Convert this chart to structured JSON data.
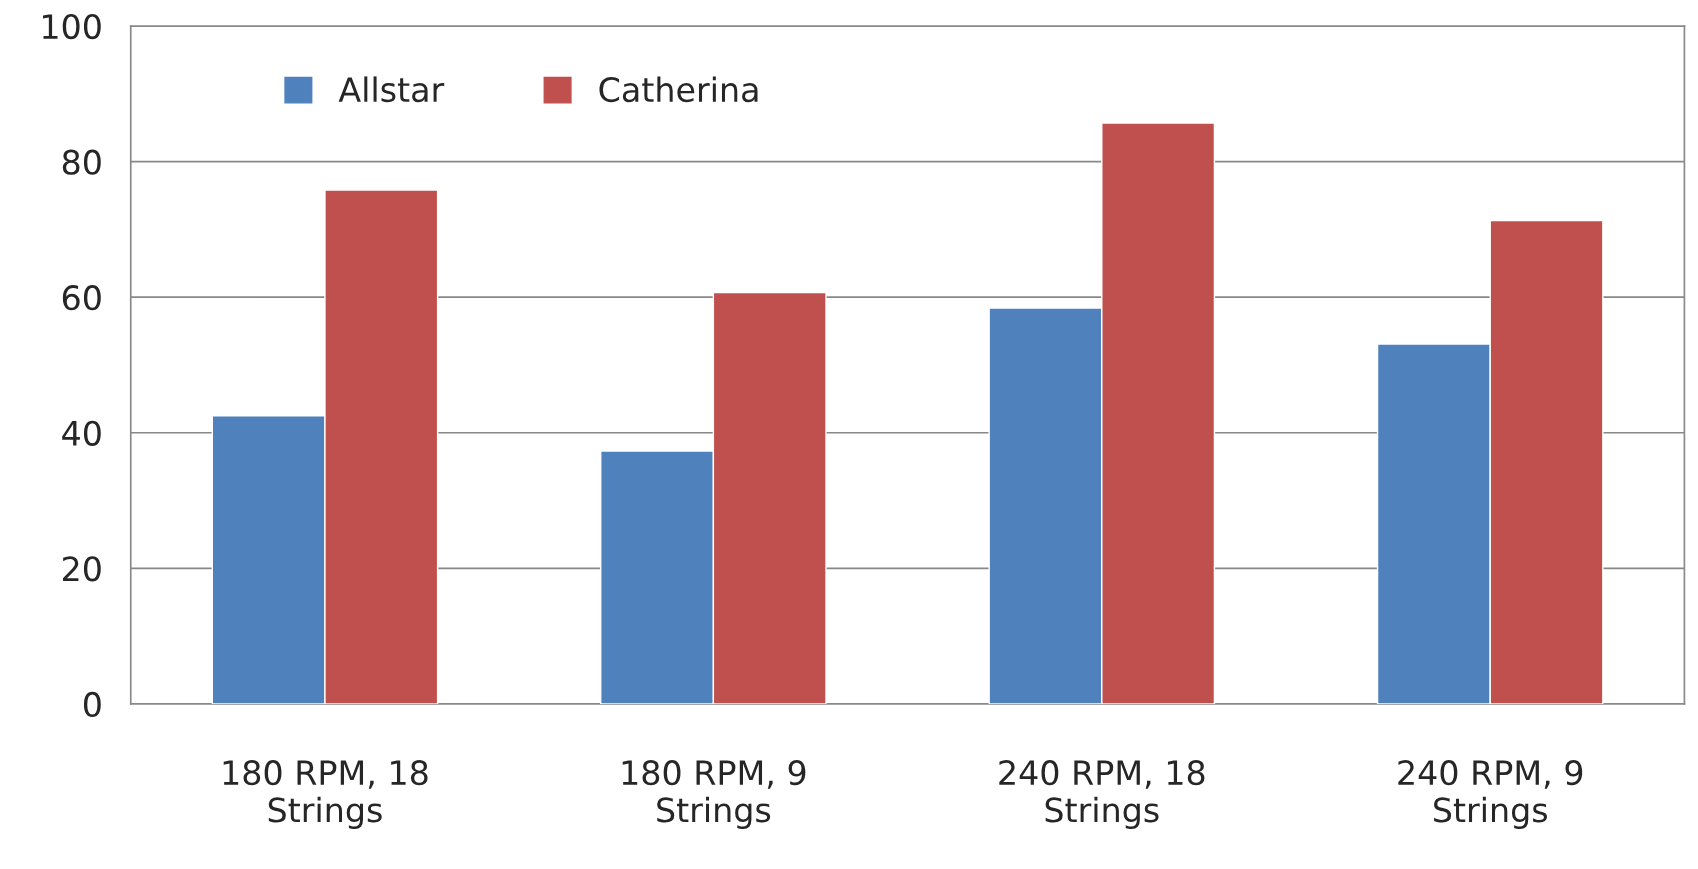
{
  "chart_data": {
    "type": "bar",
    "categories": [
      "180 RPM, 18\nStrings",
      "180 RPM, 9\nStrings",
      "240 RPM, 18\nStrings",
      "240 RPM, 9\nStrings"
    ],
    "series": [
      {
        "name": "Allstar",
        "color": "#4f81bd",
        "values": [
          42.5,
          37.3,
          58.4,
          53.1
        ]
      },
      {
        "name": "Catherina",
        "color": "#c0504d",
        "values": [
          75.8,
          60.7,
          85.7,
          71.3
        ]
      }
    ],
    "ylim": [
      0,
      100
    ],
    "yticks": [
      0,
      20,
      40,
      60,
      80,
      100
    ],
    "grid": "y",
    "legend": "top left"
  }
}
